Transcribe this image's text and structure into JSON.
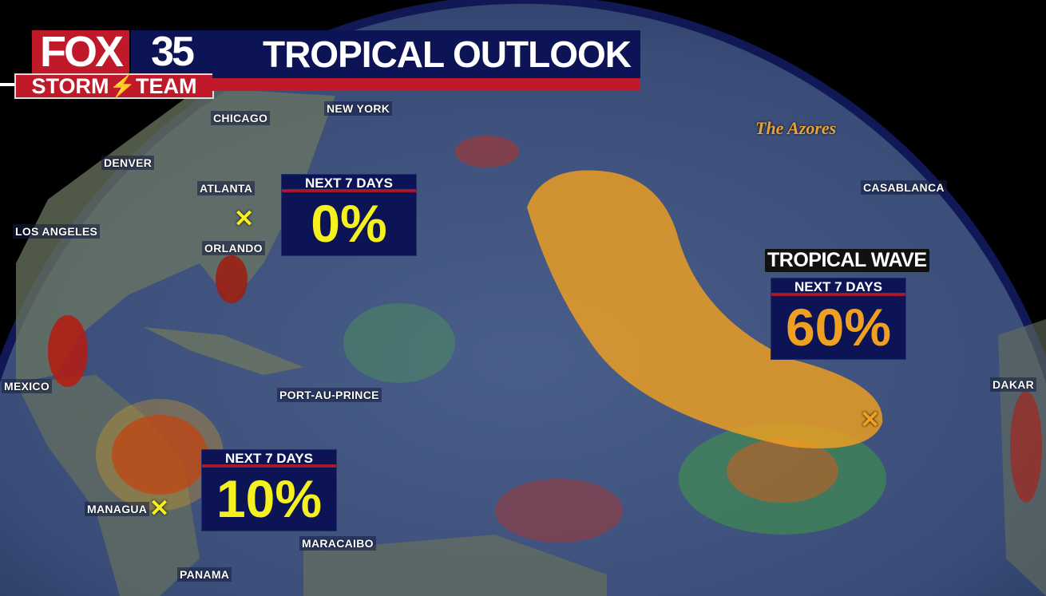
{
  "header": {
    "title": "TROPICAL OUTLOOK",
    "logo": {
      "brand": "FOX",
      "number": "35",
      "team": "STORM⚡TEAM"
    }
  },
  "colors": {
    "navy": "#0c1456",
    "red": "#c0192a",
    "outlook_orange": "#f0a020",
    "low_chance_yellow": "#f5f020"
  },
  "map": {
    "regions": [
      {
        "label": "The Azores"
      }
    ],
    "cities": [
      {
        "name": "CHICAGO"
      },
      {
        "name": "NEW YORK"
      },
      {
        "name": "DENVER"
      },
      {
        "name": "ATLANTA"
      },
      {
        "name": "LOS ANGELES"
      },
      {
        "name": "ORLANDO"
      },
      {
        "name": "CASABLANCA"
      },
      {
        "name": "MEXICO"
      },
      {
        "name": "PORT-AU-PRINCE"
      },
      {
        "name": "DAKAR"
      },
      {
        "name": "MANAGUA"
      },
      {
        "name": "MARACAIBO"
      },
      {
        "name": "PANAMA"
      }
    ]
  },
  "outlooks": [
    {
      "header": "NEXT 7 DAYS",
      "chance": "0%",
      "marker": "x-icon",
      "color": "#f5f020"
    },
    {
      "header": "NEXT 7 DAYS",
      "chance": "10%",
      "marker": "x-icon",
      "color": "#f5f020"
    },
    {
      "name": "TROPICAL WAVE",
      "header": "NEXT 7 DAYS",
      "chance": "60%",
      "marker": "x-icon",
      "color": "#f0a020"
    }
  ]
}
